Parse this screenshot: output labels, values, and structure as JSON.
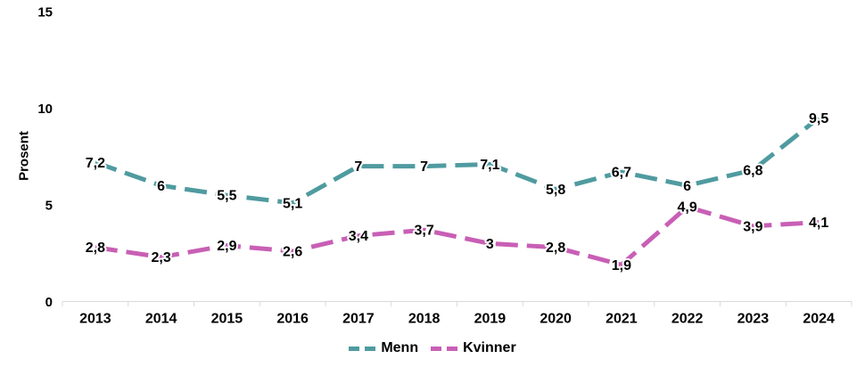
{
  "chart_data": {
    "type": "line",
    "title": "",
    "xlabel": "",
    "ylabel": "Prosent",
    "categories": [
      "2013",
      "2014",
      "2015",
      "2016",
      "2017",
      "2018",
      "2019",
      "2020",
      "2021",
      "2022",
      "2023",
      "2024"
    ],
    "series": [
      {
        "name": "Menn",
        "color": "#4F9BA0",
        "values": [
          7.2,
          6,
          5.5,
          5.1,
          7,
          7,
          7.1,
          5.8,
          6.7,
          6,
          6.8,
          9.5
        ],
        "point_labels": [
          "7,2",
          "6",
          "5,5",
          "5,1",
          "7",
          "7",
          "7,1",
          "5,8",
          "6,7",
          "6",
          "6,8",
          "9,5"
        ]
      },
      {
        "name": "Kvinner",
        "color": "#C85FB5",
        "values": [
          2.8,
          2.3,
          2.9,
          2.6,
          3.4,
          3.7,
          3,
          2.8,
          1.9,
          4.9,
          3.9,
          4.1
        ],
        "point_labels": [
          "2,8",
          "2,3",
          "2,9",
          "2,6",
          "3,4",
          "3,7",
          "3",
          "2,8",
          "1,9",
          "4,9",
          "3,9",
          "4,1"
        ]
      }
    ],
    "y_axis": {
      "min": 0,
      "max": 15,
      "ticks": [
        0,
        5,
        10,
        15
      ],
      "tick_labels": [
        "0",
        "5",
        "10",
        "15"
      ]
    },
    "grid": false,
    "line_style": "dashed",
    "legend_position": "bottom",
    "axis_color": "#D9D9D9",
    "label_color": "#000000"
  }
}
